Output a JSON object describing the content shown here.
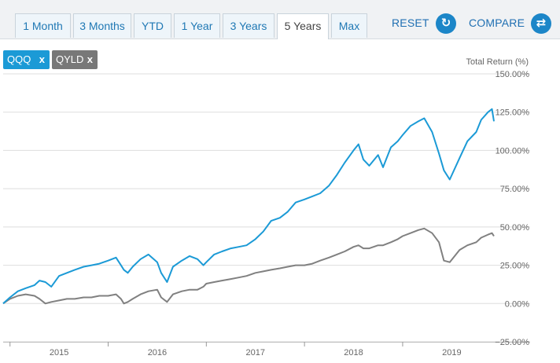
{
  "toolbar": {
    "ranges": [
      "1 Month",
      "3 Months",
      "YTD",
      "1 Year",
      "3 Years",
      "5 Years",
      "Max"
    ],
    "active_range": "5 Years",
    "reset_label": "RESET",
    "compare_label": "COMPARE"
  },
  "tickers": [
    {
      "symbol": "QQQ",
      "remove_label": "x",
      "color": "#1b9ad6"
    },
    {
      "symbol": "QYLD",
      "remove_label": "x",
      "color": "#808080"
    }
  ],
  "chart_data": {
    "type": "line",
    "ylabel": "Total Return (%)",
    "ylim": [
      -25,
      150
    ],
    "yticks": [
      -25,
      0,
      25,
      50,
      75,
      100,
      125,
      150
    ],
    "ytick_labels": [
      "−25.00%",
      "0.00%",
      "25.00%",
      "50.00%",
      "75.00%",
      "100.00%",
      "125.00%",
      "150.00%"
    ],
    "xlim": [
      2014.43,
      2019.43
    ],
    "xticks": [
      2015,
      2016,
      2017,
      2018,
      2019
    ],
    "xtick_labels": [
      "2015",
      "2016",
      "2017",
      "2018",
      "2019"
    ],
    "grid": true,
    "legend": "top-left",
    "series": [
      {
        "name": "QQQ",
        "color": "#1b9ad6",
        "x": [
          2014.43,
          2014.5,
          2014.58,
          2014.66,
          2014.75,
          2014.8,
          2014.86,
          2014.92,
          2015.0,
          2015.08,
          2015.16,
          2015.25,
          2015.33,
          2015.41,
          2015.5,
          2015.58,
          2015.63,
          2015.66,
          2015.7,
          2015.75,
          2015.83,
          2015.91,
          2016.0,
          2016.04,
          2016.1,
          2016.16,
          2016.25,
          2016.33,
          2016.41,
          2016.47,
          2016.5,
          2016.58,
          2016.66,
          2016.75,
          2016.83,
          2016.91,
          2017.0,
          2017.08,
          2017.16,
          2017.25,
          2017.33,
          2017.41,
          2017.5,
          2017.58,
          2017.66,
          2017.75,
          2017.83,
          2017.91,
          2018.0,
          2018.05,
          2018.1,
          2018.16,
          2018.25,
          2018.3,
          2018.38,
          2018.45,
          2018.5,
          2018.58,
          2018.66,
          2018.72,
          2018.8,
          2018.87,
          2018.92,
          2018.98,
          2019.08,
          2019.16,
          2019.25,
          2019.3,
          2019.37,
          2019.41,
          2019.43
        ],
        "y": [
          0,
          4,
          8,
          10,
          12,
          15,
          14,
          11,
          18,
          20,
          22,
          24,
          25,
          26,
          28,
          30,
          25,
          22,
          20,
          24,
          29,
          32,
          27,
          20,
          14,
          24,
          28,
          31,
          29,
          25,
          27,
          32,
          34,
          36,
          37,
          38,
          42,
          47,
          54,
          56,
          60,
          66,
          68,
          70,
          72,
          77,
          84,
          92,
          100,
          104,
          94,
          90,
          97,
          89,
          102,
          106,
          110,
          116,
          119,
          121,
          112,
          98,
          87,
          81,
          95,
          106,
          112,
          120,
          125,
          127,
          119
        ]
      },
      {
        "name": "QYLD",
        "color": "#808080",
        "x": [
          2014.43,
          2014.5,
          2014.58,
          2014.66,
          2014.75,
          2014.8,
          2014.86,
          2014.92,
          2015.0,
          2015.08,
          2015.16,
          2015.25,
          2015.33,
          2015.41,
          2015.5,
          2015.58,
          2015.63,
          2015.66,
          2015.7,
          2015.75,
          2015.83,
          2015.91,
          2016.0,
          2016.04,
          2016.1,
          2016.16,
          2016.25,
          2016.33,
          2016.41,
          2016.47,
          2016.5,
          2016.58,
          2016.66,
          2016.75,
          2016.83,
          2016.91,
          2017.0,
          2017.08,
          2017.16,
          2017.25,
          2017.33,
          2017.41,
          2017.5,
          2017.58,
          2017.66,
          2017.75,
          2017.83,
          2017.91,
          2018.0,
          2018.05,
          2018.1,
          2018.16,
          2018.25,
          2018.3,
          2018.38,
          2018.45,
          2018.5,
          2018.58,
          2018.66,
          2018.72,
          2018.8,
          2018.87,
          2018.92,
          2018.98,
          2019.08,
          2019.16,
          2019.25,
          2019.3,
          2019.37,
          2019.41,
          2019.43
        ],
        "y": [
          0,
          3,
          5,
          6,
          5,
          3,
          0,
          1,
          2,
          3,
          3,
          4,
          4,
          5,
          5,
          6,
          3,
          0,
          1,
          3,
          6,
          8,
          9,
          4,
          1,
          6,
          8,
          9,
          9,
          11,
          13,
          14,
          15,
          16,
          17,
          18,
          20,
          21,
          22,
          23,
          24,
          25,
          25,
          26,
          28,
          30,
          32,
          34,
          37,
          38,
          36,
          36,
          38,
          38,
          40,
          42,
          44,
          46,
          48,
          49,
          46,
          40,
          28,
          27,
          35,
          38,
          40,
          43,
          45,
          46,
          44
        ]
      }
    ]
  }
}
